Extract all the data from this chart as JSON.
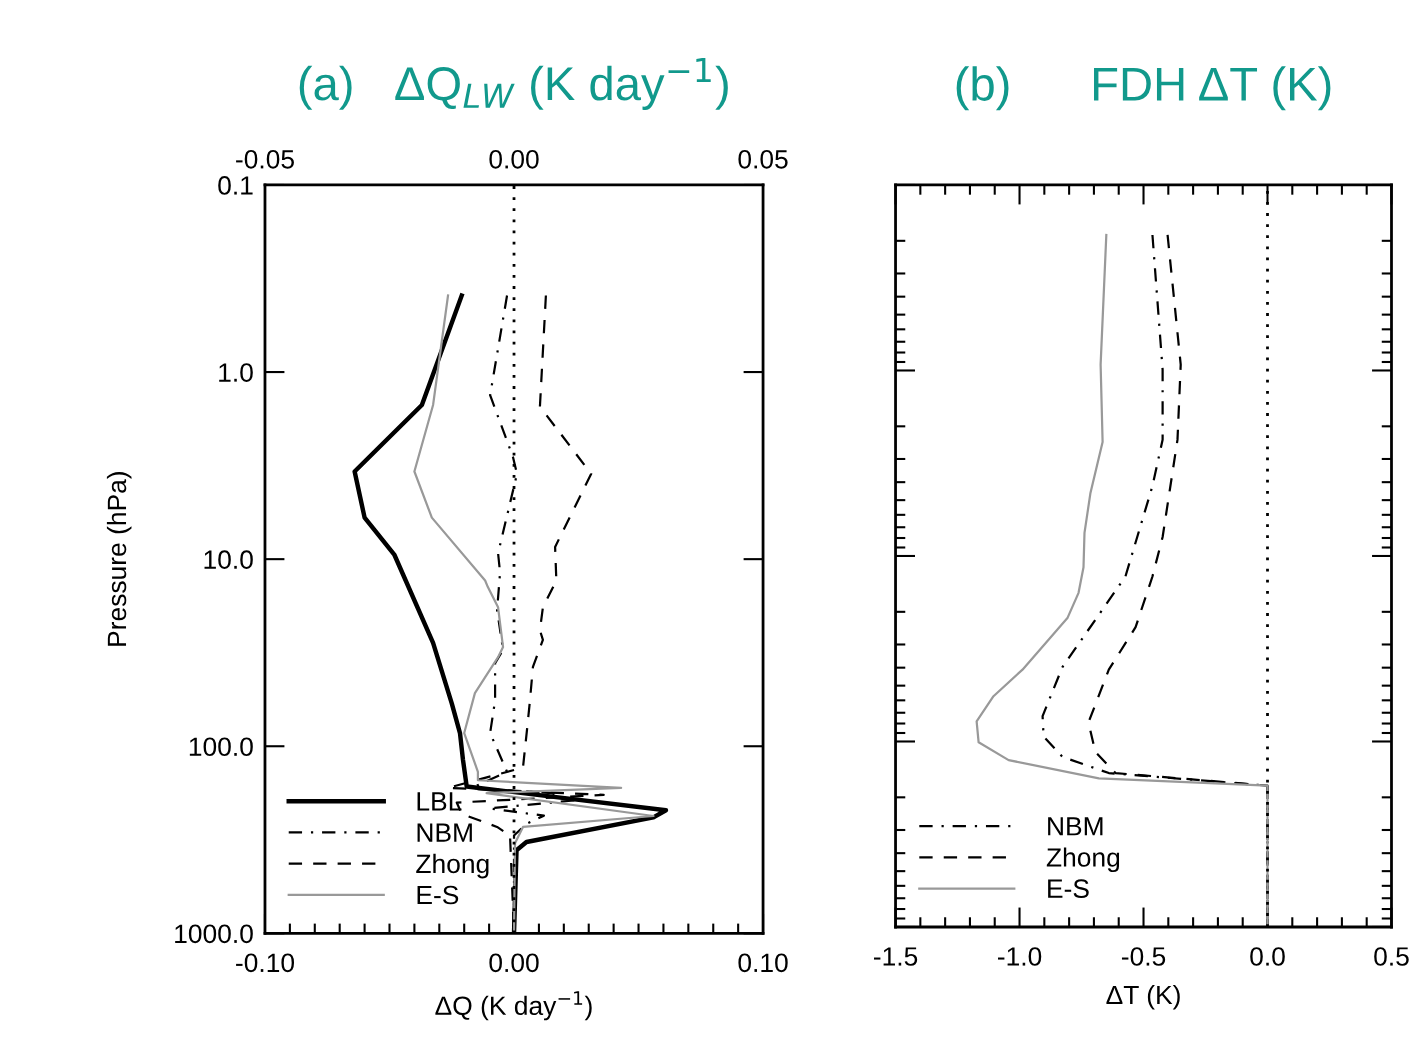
{
  "chart_data": [
    {
      "type": "line",
      "title": "(a)   ΔQ$_{LW}$ (K day$^{−1}$)",
      "xlabel": "ΔQ (K day$^{−1}$)",
      "ylabel": "Pressure (hPa)",
      "xlim": [
        -0.1,
        0.1
      ],
      "xticks": [
        {
          "value": -0.1,
          "label": "-0.10"
        },
        {
          "value": 0.0,
          "label": "0.00"
        },
        {
          "value": 0.1,
          "label": "0.10"
        }
      ],
      "x2lim": [
        -0.05,
        0.05
      ],
      "x2ticks": [
        {
          "value": -0.05,
          "label": "-0.05"
        },
        {
          "value": 0.0,
          "label": "0.00"
        },
        {
          "value": 0.05,
          "label": "0.05"
        }
      ],
      "ylim": [
        1000,
        0.1
      ],
      "yticks": [
        {
          "value": 0.1,
          "label": "0.1"
        },
        {
          "value": 1,
          "label": "1.0"
        },
        {
          "value": 10,
          "label": "10.0"
        },
        {
          "value": 100,
          "label": "100.0"
        },
        {
          "value": 1000,
          "label": "1000.0"
        }
      ],
      "log": "y",
      "grid": false,
      "legend": "bottom left",
      "ref_lines": [
        {
          "axis": "x",
          "value": 0,
          "color": "#000000",
          "line_style": "dotted"
        }
      ],
      "series": [
        {
          "name": "LBL",
          "color": "#000000",
          "line_style": "solid",
          "x": [
            -0.021,
            -0.037,
            -0.064,
            -0.06,
            -0.048,
            -0.0325,
            -0.025,
            -0.0217,
            -0.0205,
            -0.019,
            0.061,
            0.056,
            0.005,
            0.001,
            0.0
          ],
          "values": [
            0.39,
            1.5,
            3.4,
            6.0,
            9.5,
            28,
            59,
            85,
            118,
            164,
            220,
            240,
            325,
            360,
            1000
          ]
        },
        {
          "name": "NBM",
          "color": "#000000",
          "line_style": "dashdot",
          "x": [
            -0.0028,
            -0.0096,
            -0.0004,
            0.0012,
            -0.0064,
            -0.0056,
            -0.0068,
            -0.0044,
            -0.0076,
            -0.0076,
            -0.0096,
            -0.0028,
            -0.017,
            0.015,
            0.024,
            -0.01,
            0.012,
            0.005,
            0.0,
            0.0
          ],
          "values": [
            0.39,
            1.33,
            2.85,
            3.5,
            9.3,
            11.8,
            18.7,
            30.5,
            36,
            57,
            85,
            137,
            167,
            178,
            195,
            215,
            235,
            260,
            300,
            1000
          ]
        },
        {
          "name": "Zhong",
          "color": "#000000",
          "line_style": "dashed",
          "x": [
            0.0128,
            0.0104,
            0.031,
            0.0165,
            0.017,
            0.0116,
            0.0104,
            0.0116,
            0.0076,
            0.0064,
            0.0052,
            0.0036,
            -0.0265,
            0.036,
            -0.023,
            -0.021,
            -0.0068,
            -0.0016,
            0.0
          ],
          "values": [
            0.39,
            1.53,
            3.5,
            8.6,
            13,
            18.1,
            24,
            27,
            37.6,
            57,
            82,
            130,
            167,
            182,
            200,
            230,
            270,
            300,
            1000
          ]
        },
        {
          "name": "E-S",
          "color": "#999999",
          "line_style": "solid",
          "x": [
            -0.0265,
            -0.0325,
            -0.04,
            -0.033,
            -0.0116,
            -0.0105,
            -0.0064,
            -0.0044,
            -0.0064,
            -0.0157,
            -0.02,
            -0.0145,
            -0.0145,
            0.043,
            -0.011,
            0.056,
            0.0036,
            0.0004,
            0.0
          ],
          "values": [
            0.39,
            1.5,
            3.4,
            6.0,
            13,
            14.1,
            18.1,
            29.5,
            33.4,
            52,
            85,
            137,
            152,
            167,
            178,
            236,
            270,
            330,
            1000
          ]
        }
      ]
    },
    {
      "type": "line",
      "title": "(b)      FDH ΔT (K)",
      "xlabel": "ΔT (K)",
      "xlim": [
        -1.5,
        0.5
      ],
      "xticks": [
        {
          "value": -1.5,
          "label": "-1.5"
        },
        {
          "value": -1.0,
          "label": "-1.0"
        },
        {
          "value": -0.5,
          "label": "-0.5"
        },
        {
          "value": 0.0,
          "label": "0.0"
        },
        {
          "value": 0.5,
          "label": "0.5"
        }
      ],
      "ylim": [
        1000,
        0.1
      ],
      "yticks": [
        {
          "value": 0.1,
          "label": null
        },
        {
          "value": 1,
          "label": null
        },
        {
          "value": 10,
          "label": null
        },
        {
          "value": 100,
          "label": null
        },
        {
          "value": 1000,
          "label": null
        }
      ],
      "log": "y",
      "grid": false,
      "legend": "bottom left",
      "tick_labels": "x",
      "ref_lines": [
        {
          "axis": "x",
          "value": 0,
          "color": "#000000",
          "line_style": "dotted"
        }
      ],
      "series": [
        {
          "name": "NBM",
          "color": "#000000",
          "line_style": "dashdot",
          "x": [
            -0.464,
            -0.423,
            -0.423,
            -0.464,
            -0.573,
            -0.685,
            -0.827,
            -0.907,
            -0.903,
            -0.827,
            -0.64,
            0.0,
            0.0
          ],
          "values": [
            0.186,
            0.99,
            2.36,
            4.2,
            12.9,
            21.2,
            39.7,
            73,
            94,
            121,
            148,
            173,
            1000
          ]
        },
        {
          "name": "Zhong",
          "color": "#000000",
          "line_style": "dashed",
          "x": [
            -0.403,
            -0.35,
            -0.363,
            -0.423,
            -0.464,
            -0.532,
            -0.64,
            -0.722,
            -0.694,
            -0.613,
            0.0,
            0.0
          ],
          "values": [
            0.186,
            0.93,
            2.36,
            7.9,
            12.9,
            24.2,
            41,
            79,
            114,
            148,
            173,
            1000
          ]
        },
        {
          "name": "E-S",
          "color": "#999999",
          "line_style": "solid",
          "x": [
            -0.65,
            -0.673,
            -0.665,
            -0.714,
            -0.738,
            -0.742,
            -0.762,
            -0.806,
            -0.988,
            -1.105,
            -1.173,
            -1.165,
            -1.044,
            -0.68,
            0.0,
            0.0
          ],
          "values": [
            0.186,
            0.93,
            2.43,
            4.57,
            7.5,
            11.5,
            15.8,
            21.5,
            41,
            57,
            78,
            101,
            126,
            158,
            173,
            1000
          ]
        }
      ]
    }
  ]
}
